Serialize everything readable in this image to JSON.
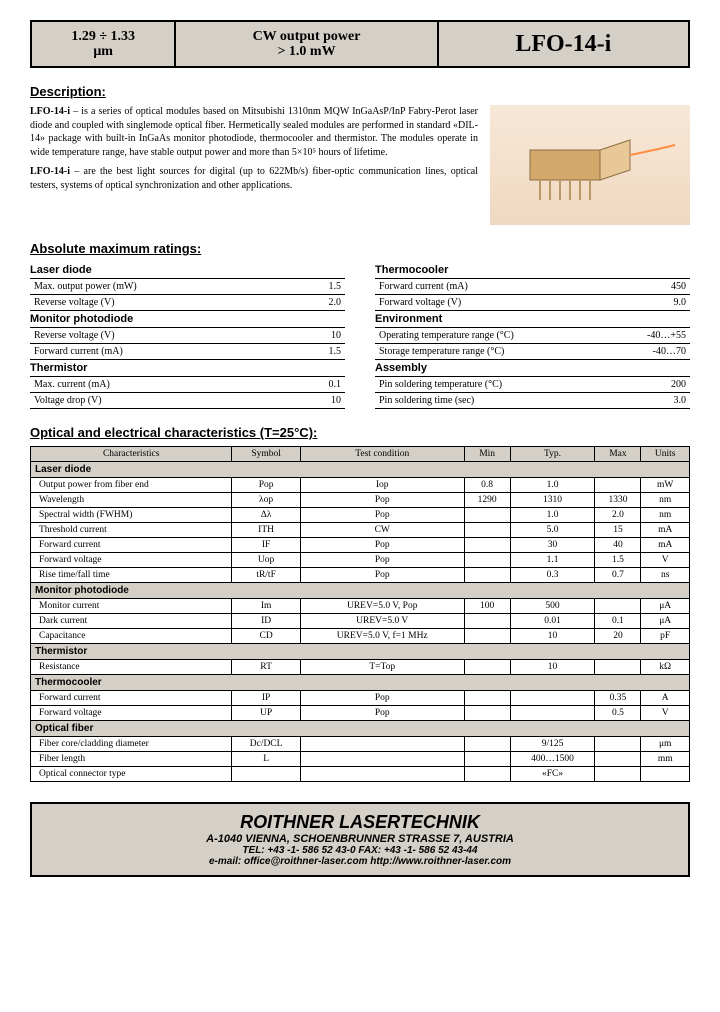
{
  "header": {
    "wavelength_line1": "1.29 ÷ 1.33",
    "wavelength_line2": "μm",
    "power_line1": "CW output power",
    "power_line2": "> 1.0 mW",
    "part": "LFO-14-i"
  },
  "sections": {
    "description": "Description:",
    "abs_max": "Absolute maximum ratings:",
    "opt_elec": "Optical and electrical characteristics (T=25°C):"
  },
  "description": {
    "p1_bold": "LFO-14-i",
    "p1": " – is a series of optical modules based on Mitsubishi 1310nm MQW InGaAsP/InP Fabry-Perot laser diode and coupled with singlemode optical fiber. Hermetically sealed modules are performed in standard «DIL-14» package with built-in InGaAs monitor photodiode, thermocooler and thermistor. The modules operate in wide temperature range, have stable output power and more than 5×10⁵ hours of lifetime.",
    "p2_bold": "LFO-14-i",
    "p2": " – are the best light sources for digital (up to 622Mb/s) fiber-optic communication lines, optical testers, systems of optical synchronization and other applications."
  },
  "ratings": {
    "left": [
      {
        "head": "Laser diode"
      },
      {
        "label": "Max. output power (mW)",
        "val": "1.5"
      },
      {
        "label": "Reverse voltage (V)",
        "val": "2.0"
      },
      {
        "head": "Monitor photodiode"
      },
      {
        "label": "Reverse voltage (V)",
        "val": "10"
      },
      {
        "label": "Forward current (mA)",
        "val": "1.5"
      },
      {
        "head": "Thermistor"
      },
      {
        "label": "Max. current (mA)",
        "val": "0.1"
      },
      {
        "label": "Voltage drop (V)",
        "val": "10"
      }
    ],
    "right": [
      {
        "head": "Thermocooler"
      },
      {
        "label": "Forward current (mA)",
        "val": "450"
      },
      {
        "label": "Forward voltage (V)",
        "val": "9.0"
      },
      {
        "head": "Environment"
      },
      {
        "label": "Operating temperature range (°C)",
        "val": "-40…+55"
      },
      {
        "label": "Storage temperature range (°C)",
        "val": "-40…70"
      },
      {
        "head": "Assembly"
      },
      {
        "label": "Pin soldering temperature (°C)",
        "val": "200"
      },
      {
        "label": "Pin soldering time (sec)",
        "val": "3.0"
      }
    ]
  },
  "char_table": {
    "headers": [
      "Characteristics",
      "Symbol",
      "Test condition",
      "Min",
      "Typ.",
      "Max",
      "Units"
    ],
    "groups": [
      {
        "head": "Laser diode",
        "rows": [
          [
            "Output power from fiber end",
            "Pop",
            "Iop",
            "0.8",
            "1.0",
            "",
            "mW"
          ],
          [
            "Wavelength",
            "λop",
            "Pop",
            "1290",
            "1310",
            "1330",
            "nm"
          ],
          [
            "Spectral width (FWHM)",
            "Δλ",
            "Pop",
            "",
            "1.0",
            "2.0",
            "nm"
          ],
          [
            "Threshold current",
            "ITH",
            "CW",
            "",
            "5.0",
            "15",
            "mA"
          ],
          [
            "Forward current",
            "IF",
            "Pop",
            "",
            "30",
            "40",
            "mA"
          ],
          [
            "Forward voltage",
            "Uop",
            "Pop",
            "",
            "1.1",
            "1.5",
            "V"
          ],
          [
            "Rise time/fall time",
            "tR/tF",
            "Pop",
            "",
            "0.3",
            "0.7",
            "ns"
          ]
        ]
      },
      {
        "head": "Monitor photodiode",
        "rows": [
          [
            "Monitor current",
            "Im",
            "UREV=5.0 V, Pop",
            "100",
            "500",
            "",
            "μA"
          ],
          [
            "Dark current",
            "ID",
            "UREV=5.0 V",
            "",
            "0.01",
            "0.1",
            "μA"
          ],
          [
            "Capacitance",
            "CD",
            "UREV=5.0 V, f=1 MHz",
            "",
            "10",
            "20",
            "pF"
          ]
        ]
      },
      {
        "head": "Thermistor",
        "rows": [
          [
            "Resistance",
            "RT",
            "T=Top",
            "",
            "10",
            "",
            "kΩ"
          ]
        ]
      },
      {
        "head": "Thermocooler",
        "rows": [
          [
            "Forward current",
            "IP",
            "Pop",
            "",
            "",
            "0.35",
            "A"
          ],
          [
            "Forward voltage",
            "UP",
            "Pop",
            "",
            "",
            "0.5",
            "V"
          ]
        ]
      },
      {
        "head": "Optical fiber",
        "rows": [
          [
            "Fiber core/cladding diameter",
            "Dc/DCL",
            "",
            "",
            "9/125",
            "",
            "μm"
          ],
          [
            "Fiber length",
            "L",
            "",
            "",
            "400…1500",
            "",
            "mm"
          ],
          [
            "Optical connector type",
            "",
            "",
            "",
            "«FC»",
            "",
            ""
          ]
        ]
      }
    ]
  },
  "footer": {
    "company": "ROITHNER LASERTECHNIK",
    "addr": "A-1040 VIENNA, SCHOENBRUNNER STRASSE 7, AUSTRIA",
    "tel": "TEL: +43 -1- 586 52 43-0  FAX: +43 -1- 586 52 43-44",
    "email": "e-mail: office@roithner-laser.com    http://www.roithner-laser.com"
  },
  "colors": {
    "header_bg": "#d4d0c8",
    "border": "#000000",
    "img_bg_top": "#f8e8d8",
    "img_bg_bot": "#f0d8c0",
    "module_body": "#d4a76a",
    "fiber": "#ff8c42"
  }
}
